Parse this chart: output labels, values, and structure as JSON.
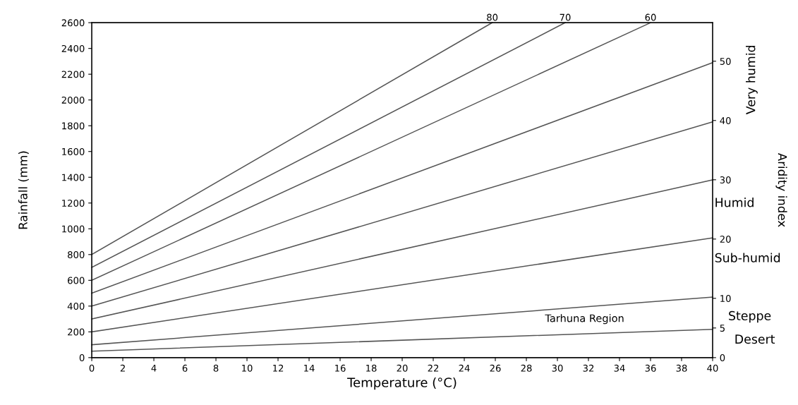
{
  "chart_data": {
    "type": "line",
    "xlabel": "Temperature (°C)",
    "ylabel": "Rainfall (mm)",
    "y2label": "Aridity index",
    "xlim": [
      0,
      40
    ],
    "xticks": [
      0,
      2,
      4,
      6,
      8,
      10,
      12,
      14,
      16,
      18,
      20,
      22,
      24,
      26,
      28,
      30,
      32,
      34,
      36,
      38,
      40
    ],
    "ylim": [
      0,
      2600
    ],
    "yticks": [
      0,
      200,
      400,
      600,
      800,
      1000,
      1200,
      1400,
      1600,
      1800,
      2000,
      2200,
      2400,
      2600
    ],
    "y2lim": [
      0,
      56.5
    ],
    "y2ticks": [
      0,
      5,
      10,
      20,
      30,
      40,
      50
    ],
    "grid": false,
    "legend": false,
    "marker": "none",
    "line_style": "solid",
    "series": [
      {
        "color": "#555555",
        "x": [
          0,
          40
        ],
        "values": [
          50,
          220
        ]
      },
      {
        "color": "#555555",
        "x": [
          0,
          40
        ],
        "values": [
          100,
          470
        ]
      },
      {
        "color": "#555555",
        "x": [
          0,
          40
        ],
        "values": [
          200,
          930
        ]
      },
      {
        "color": "#555555",
        "x": [
          0,
          40
        ],
        "values": [
          300,
          1380
        ]
      },
      {
        "color": "#555555",
        "x": [
          0,
          40
        ],
        "values": [
          400,
          1830
        ]
      },
      {
        "color": "#555555",
        "x": [
          0,
          40
        ],
        "values": [
          500,
          2290
        ]
      },
      {
        "color": "#555555",
        "x": [
          0,
          36
        ],
        "values": [
          600,
          2600
        ]
      },
      {
        "color": "#555555",
        "x": [
          0,
          30.5
        ],
        "values": [
          700,
          2600
        ]
      },
      {
        "color": "#555555",
        "x": [
          0,
          25.8
        ],
        "values": [
          800,
          2600
        ]
      }
    ],
    "annotations": [
      "Very humid",
      {
        "text": "80",
        "x": 25.8,
        "y": 2600
      },
      {
        "text": "70",
        "x": 30.5,
        "y": 2600
      },
      {
        "text": "60",
        "x": 36,
        "y": 2600
      },
      "Humid",
      "Sub-humid",
      "Steppe",
      "Desert",
      "Tarhuna Region"
    ]
  }
}
